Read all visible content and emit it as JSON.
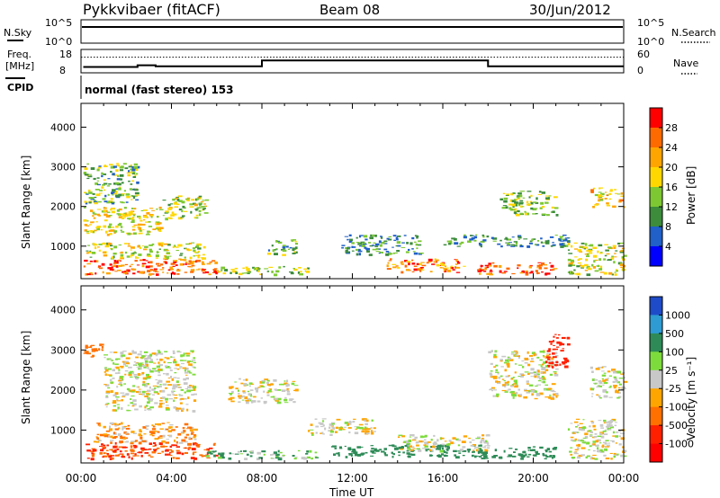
{
  "header": {
    "station": "Pykkvibaer (fitACF)",
    "beam": "Beam 08",
    "date": "30/Jun/2012"
  },
  "nsky_panel": {
    "left_label": "N.Sky",
    "right_label": "N.Search",
    "left_ticks": [
      "10^5",
      "10^0"
    ],
    "right_ticks": [
      "10^5",
      "10^0"
    ]
  },
  "freq_panel": {
    "left_label_1": "Freq.",
    "left_label_2": "[MHz]",
    "right_label": "Nave",
    "left_ticks": [
      "18",
      "8"
    ],
    "right_ticks": [
      "60",
      "0"
    ]
  },
  "cpid_panel": {
    "label": "CPID",
    "text": "normal (fast stereo) 153"
  },
  "time_axis": {
    "title": "Time UT",
    "ticks": [
      "00:00",
      "04:00",
      "08:00",
      "12:00",
      "16:00",
      "20:00",
      "00:00"
    ]
  },
  "colorbars": {
    "power": {
      "title": "Power [dB]",
      "ticks": [
        "28",
        "24",
        "20",
        "16",
        "12",
        "8",
        "4"
      ],
      "colors": [
        "#ff0000",
        "#ff6a00",
        "#ffa500",
        "#ffd700",
        "#7dc832",
        "#3c8c3c",
        "#2060c8",
        "#0000ff"
      ]
    },
    "velocity": {
      "title": "Velocity [m s⁻¹]",
      "ticks": [
        "1000",
        "500",
        "100",
        "25",
        "-25",
        "-100",
        "-500",
        "-1000"
      ],
      "colors": [
        "#1e4bc8",
        "#2e9bd2",
        "#2e8b57",
        "#7ddc3c",
        "#c8c8c8",
        "#ffa500",
        "#ff7000",
        "#ff2000",
        "#ff0000"
      ]
    }
  },
  "chart_data": [
    {
      "type": "heatmap",
      "name": "power",
      "xlabel": "",
      "ylabel": "Slant Range [km]",
      "xlim": [
        0,
        24
      ],
      "ylim": [
        180,
        4600
      ],
      "yticks": [
        "4000",
        "3000",
        "2000",
        "1000"
      ],
      "ytick_values": [
        4000,
        3000,
        2000,
        1000
      ],
      "data_description": "Backscatter power, scattered patches (hours UT, slant range km, dB)",
      "patches": [
        {
          "t": [
            0.1,
            6.0
          ],
          "r": [
            300,
            700
          ],
          "db": 24
        },
        {
          "t": [
            0.2,
            5.5
          ],
          "r": [
            700,
            1100
          ],
          "db": 14
        },
        {
          "t": [
            0.1,
            3.5
          ],
          "r": [
            1300,
            2000
          ],
          "db": 16
        },
        {
          "t": [
            0.1,
            2.5
          ],
          "r": [
            2100,
            3100
          ],
          "db": 10
        },
        {
          "t": [
            3.5,
            5.5
          ],
          "r": [
            1700,
            2300
          ],
          "db": 14
        },
        {
          "t": [
            6.0,
            10.0
          ],
          "r": [
            300,
            500
          ],
          "db": 12
        },
        {
          "t": [
            8.2,
            9.5
          ],
          "r": [
            800,
            1200
          ],
          "db": 10
        },
        {
          "t": [
            11.5,
            15.0
          ],
          "r": [
            800,
            1300
          ],
          "db": 8
        },
        {
          "t": [
            13.5,
            17.0
          ],
          "r": [
            350,
            700
          ],
          "db": 22
        },
        {
          "t": [
            16.0,
            21.5
          ],
          "r": [
            1000,
            1300
          ],
          "db": 8
        },
        {
          "t": [
            17.5,
            21.0
          ],
          "r": [
            300,
            600
          ],
          "db": 26
        },
        {
          "t": [
            18.5,
            21.0
          ],
          "r": [
            1800,
            2400
          ],
          "db": 12
        },
        {
          "t": [
            21.5,
            24.0
          ],
          "r": [
            300,
            1100
          ],
          "db": 14
        },
        {
          "t": [
            22.5,
            24.0
          ],
          "r": [
            2000,
            2500
          ],
          "db": 18
        }
      ]
    },
    {
      "type": "heatmap",
      "name": "velocity",
      "xlabel": "Time UT",
      "ylabel": "Slant Range [km]",
      "xlim": [
        0,
        24
      ],
      "ylim": [
        180,
        4600
      ],
      "yticks": [
        "4000",
        "3000",
        "2000",
        "1000"
      ],
      "ytick_values": [
        4000,
        3000,
        2000,
        1000
      ],
      "data_description": "Line-of-sight velocity, scattered patches (hours UT, slant range km, m/s)",
      "patches": [
        {
          "t": [
            0.1,
            6.0
          ],
          "r": [
            300,
            700
          ],
          "v": -300
        },
        {
          "t": [
            0.5,
            5.0
          ],
          "r": [
            700,
            1200
          ],
          "v": -60
        },
        {
          "t": [
            1.0,
            5.0
          ],
          "r": [
            1500,
            3000
          ],
          "v": 0
        },
        {
          "t": [
            0.1,
            1.0
          ],
          "r": [
            2800,
            3200
          ],
          "v": -150
        },
        {
          "t": [
            5.5,
            10.5
          ],
          "r": [
            300,
            500
          ],
          "v": 50
        },
        {
          "t": [
            6.5,
            9.5
          ],
          "r": [
            1700,
            2300
          ],
          "v": 0
        },
        {
          "t": [
            10.0,
            13.0
          ],
          "r": [
            900,
            1300
          ],
          "v": 0
        },
        {
          "t": [
            11.0,
            18.0
          ],
          "r": [
            350,
            650
          ],
          "v": 200
        },
        {
          "t": [
            14.0,
            18.0
          ],
          "r": [
            500,
            900
          ],
          "v": 0
        },
        {
          "t": [
            17.5,
            21.0
          ],
          "r": [
            300,
            600
          ],
          "v": 200
        },
        {
          "t": [
            18.0,
            21.0
          ],
          "r": [
            1800,
            3000
          ],
          "v": 0
        },
        {
          "t": [
            20.5,
            21.5
          ],
          "r": [
            2600,
            3400
          ],
          "v": -400
        },
        {
          "t": [
            21.5,
            24.0
          ],
          "r": [
            300,
            1300
          ],
          "v": 0
        },
        {
          "t": [
            22.5,
            24.0
          ],
          "r": [
            1800,
            2600
          ],
          "v": 0
        }
      ]
    }
  ],
  "nsky_trace": {
    "t": [
      0,
      24
    ],
    "level": 0.85
  },
  "freq_trace": {
    "segments": [
      {
        "t": [
          0.1,
          2.5
        ],
        "mhz": 10.5
      },
      {
        "t": [
          2.5,
          3.3
        ],
        "mhz": 11.2
      },
      {
        "t": [
          3.3,
          8.0
        ],
        "mhz": 10.8
      },
      {
        "t": [
          8.0,
          18.0
        ],
        "mhz": 13.3
      },
      {
        "t": [
          18.0,
          24.0
        ],
        "mhz": 10.8
      }
    ],
    "nave_dotted_level": 40
  }
}
